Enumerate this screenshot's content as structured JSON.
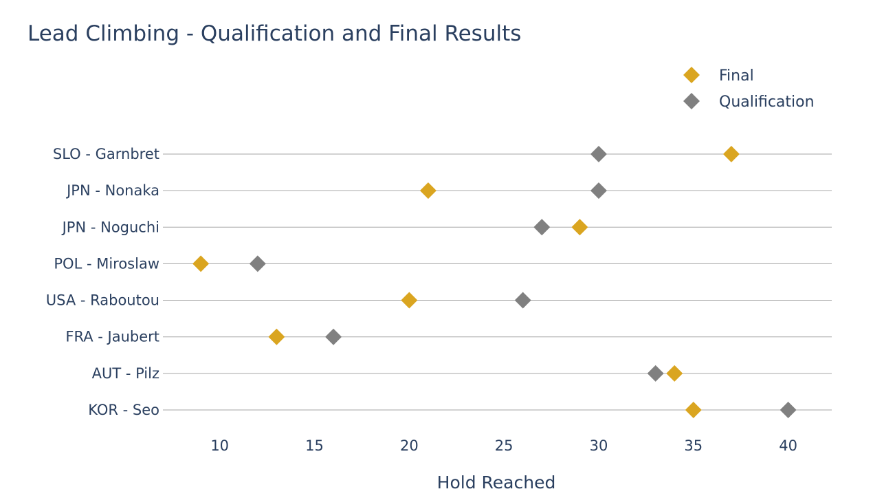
{
  "chart_data": {
    "type": "scatter",
    "title": "Lead Climbing - Qualification and Final Results",
    "xlabel": "Hold Reached",
    "ylabel": "",
    "xlim": [
      7,
      42.3
    ],
    "x_ticks": [
      10,
      15,
      20,
      25,
      30,
      35,
      40
    ],
    "grid": false,
    "legend_position": "top-right",
    "categories": [
      "SLO - Garnbret",
      "JPN - Nonaka",
      "JPN - Noguchi",
      "POL - Miroslaw",
      "USA - Raboutou",
      "FRA - Jaubert",
      "AUT - Pilz",
      "KOR - Seo"
    ],
    "series": [
      {
        "name": "Final",
        "color": "#DAA520",
        "marker": "diamond",
        "values": [
          37,
          21,
          29,
          9,
          20,
          13,
          34,
          35
        ]
      },
      {
        "name": "Qualification",
        "color": "#808080",
        "marker": "diamond",
        "values": [
          30,
          30,
          27,
          12,
          26,
          16,
          33,
          40
        ]
      }
    ]
  }
}
